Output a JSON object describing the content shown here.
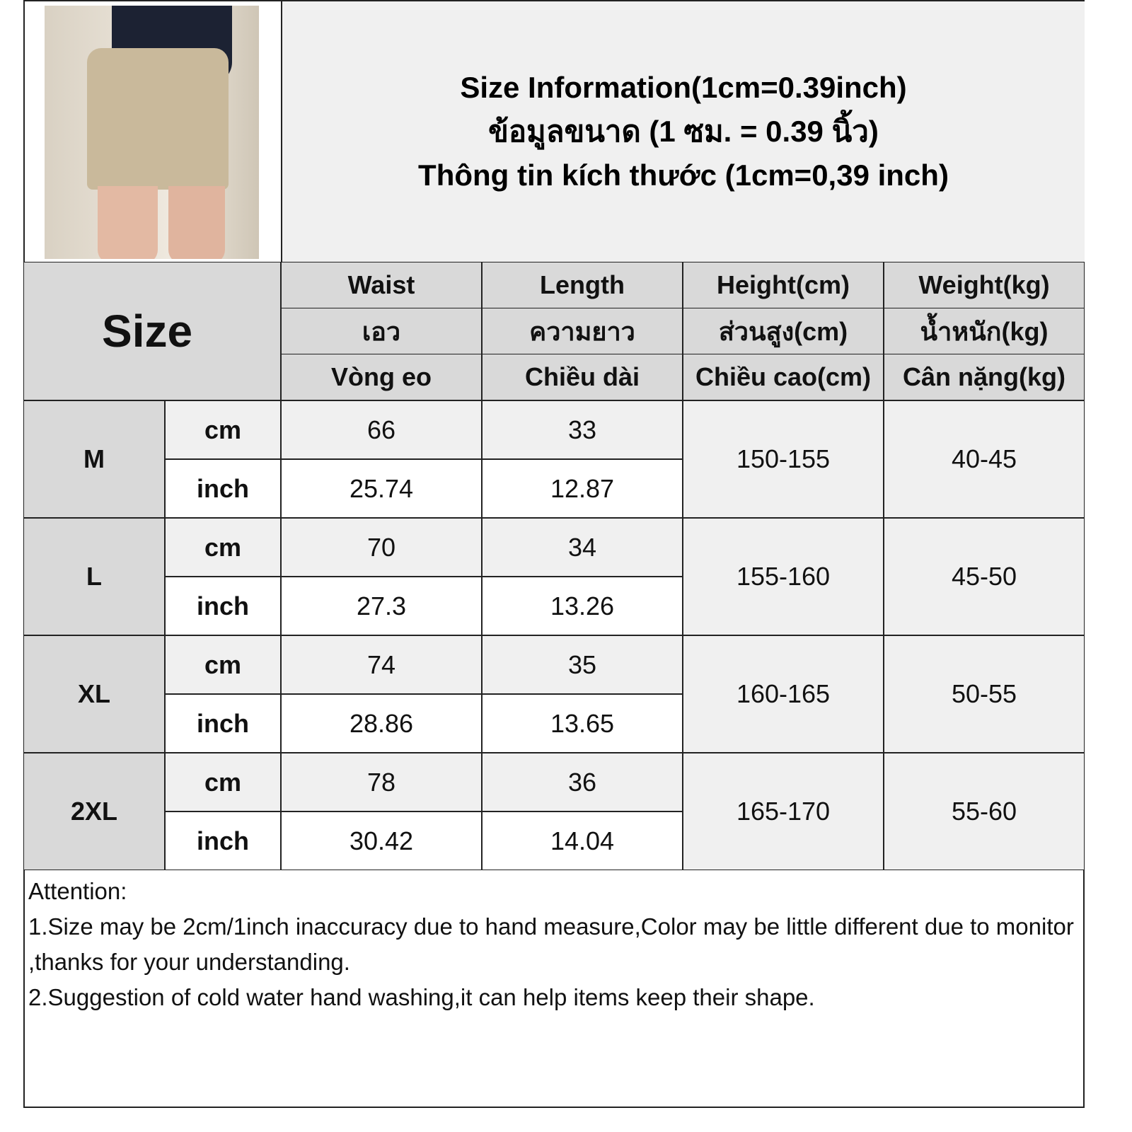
{
  "title": {
    "line1": "Size Information(1cm=0.39inch)",
    "line2": "ข้อมูลขนาด (1 ซม. = 0.39 นิ้ว)",
    "line3": "Thông tin kích thước (1cm=0,39 inch)"
  },
  "header": {
    "size": "Size",
    "columns": [
      {
        "en": "Waist",
        "th": "เอว",
        "vi": "Vòng eo"
      },
      {
        "en": "Length",
        "th": "ความยาว",
        "vi": "Chiều dài"
      },
      {
        "en": "Height(cm)",
        "th": "ส่วนสูง(cm)",
        "vi": "Chiều cao(cm)"
      },
      {
        "en": "Weight(kg)",
        "th": "น้ำหนัก(kg)",
        "vi": "Cân nặng(kg)"
      }
    ]
  },
  "rows": [
    {
      "size": "M",
      "cm": "cm",
      "inch": "inch",
      "waist_cm": "66",
      "waist_in": "25.74",
      "length_cm": "33",
      "length_in": "12.87",
      "height": "150-155",
      "weight": "40-45"
    },
    {
      "size": "L",
      "cm": "cm",
      "inch": "inch",
      "waist_cm": "70",
      "waist_in": "27.3",
      "length_cm": "34",
      "length_in": "13.26",
      "height": "155-160",
      "weight": "45-50"
    },
    {
      "size": "XL",
      "cm": "cm",
      "inch": "inch",
      "waist_cm": "74",
      "waist_in": "28.86",
      "length_cm": "35",
      "length_in": "13.65",
      "height": "160-165",
      "weight": "50-55"
    },
    {
      "size": "2XL",
      "cm": "cm",
      "inch": "inch",
      "waist_cm": "78",
      "waist_in": "30.42",
      "length_cm": "36",
      "length_in": "14.04",
      "height": "165-170",
      "weight": "55-60"
    }
  ],
  "notes": {
    "heading": "Attention:",
    "line1": "1.Size may be 2cm/1inch inaccuracy due to hand measure,Color may be little different due to monitor ,thanks for your understanding.",
    "line2": "2.Suggestion of cold water hand washing,it can help items keep their shape."
  },
  "colors": {
    "header_bg": "#d9d9d9",
    "light_bg": "#f0f0f0"
  }
}
